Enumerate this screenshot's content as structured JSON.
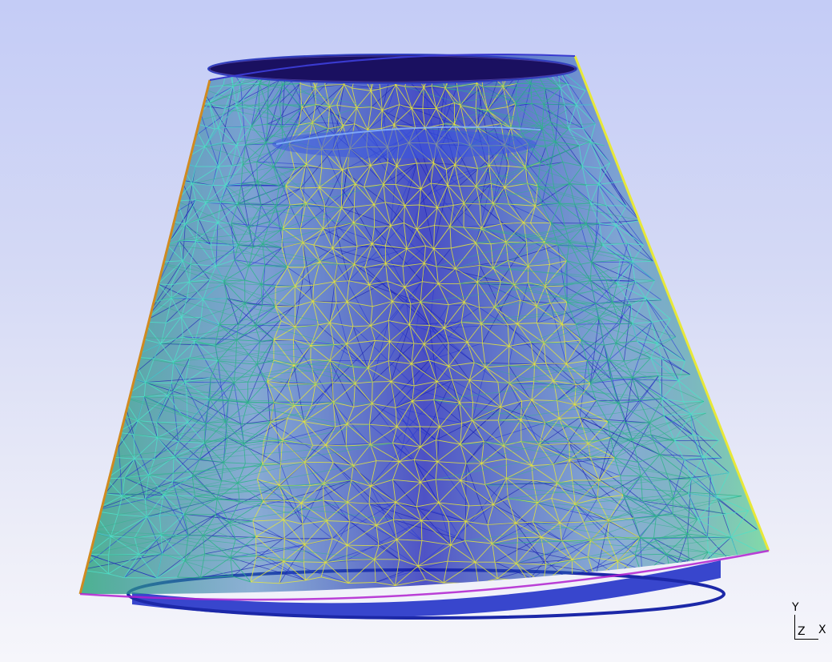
{
  "viewer": {
    "background_top": "#c4ccf6",
    "background_bottom": "#f6f6fb",
    "mesh_colors": {
      "inner_dense": "#1a1fb4",
      "inner_lines": "#2a3ad6",
      "surface_green": "#2fb48a",
      "surface_cyan": "#4fe0c8",
      "surface_yellow": "#e8e838",
      "edge_orange": "#d08a20",
      "edge_magenta": "#b020d0",
      "top_cap": "#1a1060"
    }
  },
  "axis_triad": {
    "y_label": "Y",
    "z_label": "Z",
    "x_label": "X"
  }
}
